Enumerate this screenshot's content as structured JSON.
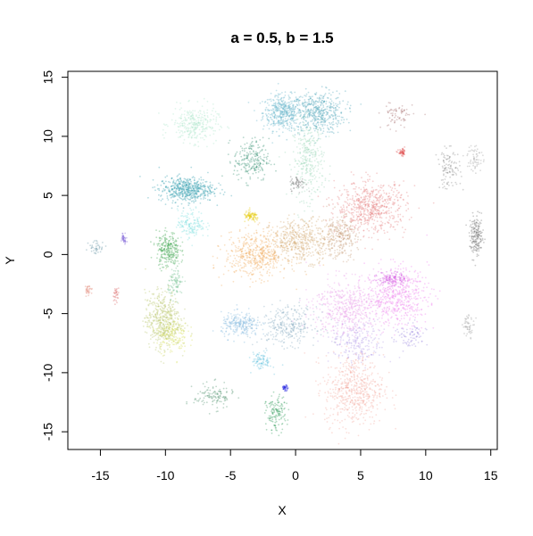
{
  "chart_data": {
    "type": "scatter",
    "title": "a = 0.5, b = 1.5",
    "xlabel": "X",
    "ylabel": "Y",
    "xlim": [
      -17.5,
      15.5
    ],
    "ylim": [
      -16.5,
      15.5
    ],
    "xticks": [
      -15,
      -10,
      -5,
      0,
      5,
      10,
      15
    ],
    "yticks": [
      -15,
      -10,
      -5,
      0,
      5,
      10,
      15
    ],
    "xtick_labels": [
      "-15",
      "-10",
      "-5",
      "0",
      "5",
      "10",
      "15"
    ],
    "ytick_labels": [
      "-15",
      "-10",
      "-5",
      "0",
      "5",
      "10",
      "15"
    ],
    "grid": false,
    "legend": "none",
    "clusters": [
      {
        "name": "c1",
        "color": "#5fb3c9",
        "cx": -1.0,
        "cy": 12.0,
        "sx": 1.0,
        "sy": 1.0,
        "n": 420
      },
      {
        "name": "c2",
        "color": "#4aa3b8",
        "cx": 1.7,
        "cy": 12.0,
        "sx": 1.4,
        "sy": 1.2,
        "n": 480
      },
      {
        "name": "c3",
        "color": "#9ad6b8",
        "cx": 1.0,
        "cy": 8.0,
        "sx": 0.8,
        "sy": 2.2,
        "n": 320
      },
      {
        "name": "c4",
        "color": "#a9e4c8",
        "cx": -7.8,
        "cy": 11.0,
        "sx": 1.2,
        "sy": 1.0,
        "n": 300
      },
      {
        "name": "c5",
        "color": "#2e8b6e",
        "cx": -3.4,
        "cy": 8.0,
        "sx": 0.9,
        "sy": 1.2,
        "n": 220
      },
      {
        "name": "c6",
        "color": "#777777",
        "cx": 0.2,
        "cy": 6.0,
        "sx": 0.4,
        "sy": 0.4,
        "n": 60
      },
      {
        "name": "c7",
        "color": "#2c9aab",
        "cx": -8.4,
        "cy": 5.5,
        "sx": 1.4,
        "sy": 0.7,
        "n": 520
      },
      {
        "name": "c8",
        "color": "#7fe0e0",
        "cx": -8.0,
        "cy": 2.6,
        "sx": 0.7,
        "sy": 0.8,
        "n": 160
      },
      {
        "name": "c9",
        "color": "#3aa34a",
        "cx": -9.8,
        "cy": 0.4,
        "sx": 0.6,
        "sy": 1.0,
        "n": 260
      },
      {
        "name": "c10",
        "color": "#6fbf8f",
        "cx": -9.2,
        "cy": -2.4,
        "sx": 0.4,
        "sy": 0.8,
        "n": 90
      },
      {
        "name": "c11",
        "color": "#e6c800",
        "cx": -3.4,
        "cy": 3.2,
        "sx": 0.4,
        "sy": 0.3,
        "n": 90
      },
      {
        "name": "c12",
        "color": "#f2a85a",
        "cx": -3.0,
        "cy": 0.0,
        "sx": 1.6,
        "sy": 1.3,
        "n": 500
      },
      {
        "name": "c13",
        "color": "#d2a56d",
        "cx": 0.5,
        "cy": 1.2,
        "sx": 1.6,
        "sy": 1.2,
        "n": 480
      },
      {
        "name": "c14",
        "color": "#c69a78",
        "cx": 3.4,
        "cy": 1.5,
        "sx": 0.9,
        "sy": 1.2,
        "n": 260
      },
      {
        "name": "c15",
        "color": "#e57e7e",
        "cx": 5.8,
        "cy": 4.0,
        "sx": 1.8,
        "sy": 1.4,
        "n": 620
      },
      {
        "name": "c16",
        "color": "#e04a4a",
        "cx": 8.2,
        "cy": 8.6,
        "sx": 0.2,
        "sy": 0.2,
        "n": 50
      },
      {
        "name": "c17",
        "color": "#a36b6b",
        "cx": 7.8,
        "cy": 11.8,
        "sx": 0.8,
        "sy": 0.8,
        "n": 70
      },
      {
        "name": "c18",
        "color": "#888888",
        "cx": 11.8,
        "cy": 7.2,
        "sx": 0.6,
        "sy": 1.1,
        "n": 110
      },
      {
        "name": "c19",
        "color": "#9a9a9a",
        "cx": 13.8,
        "cy": 8.2,
        "sx": 0.4,
        "sy": 0.8,
        "n": 60
      },
      {
        "name": "c20",
        "color": "#6e6e6e",
        "cx": 13.9,
        "cy": 1.5,
        "sx": 0.35,
        "sy": 1.1,
        "n": 180
      },
      {
        "name": "c21",
        "color": "#e89ae8",
        "cx": 4.0,
        "cy": -4.5,
        "sx": 1.8,
        "sy": 1.6,
        "n": 540
      },
      {
        "name": "c22",
        "color": "#ef7fef",
        "cx": 7.8,
        "cy": -3.5,
        "sx": 1.6,
        "sy": 1.6,
        "n": 520
      },
      {
        "name": "c23",
        "color": "#cf4fe0",
        "cx": 7.4,
        "cy": -2.0,
        "sx": 0.7,
        "sy": 0.4,
        "n": 120
      },
      {
        "name": "c24",
        "color": "#b29ae8",
        "cx": 4.8,
        "cy": -7.5,
        "sx": 1.4,
        "sy": 1.2,
        "n": 220
      },
      {
        "name": "c25",
        "color": "#9b86e0",
        "cx": 8.8,
        "cy": -7.0,
        "sx": 0.8,
        "sy": 0.8,
        "n": 80
      },
      {
        "name": "c26",
        "color": "#f4a79a",
        "cx": 4.5,
        "cy": -11.5,
        "sx": 1.5,
        "sy": 2.0,
        "n": 560
      },
      {
        "name": "c27",
        "color": "#b7c66a",
        "cx": -10.2,
        "cy": -5.5,
        "sx": 0.9,
        "sy": 1.6,
        "n": 480
      },
      {
        "name": "c28",
        "color": "#d8e05a",
        "cx": -9.5,
        "cy": -6.8,
        "sx": 0.8,
        "sy": 1.0,
        "n": 160
      },
      {
        "name": "c29",
        "color": "#7ab4dc",
        "cx": -4.2,
        "cy": -6.0,
        "sx": 1.0,
        "sy": 0.7,
        "n": 240
      },
      {
        "name": "c30",
        "color": "#84aabf",
        "cx": -0.6,
        "cy": -6.0,
        "sx": 1.5,
        "sy": 1.1,
        "n": 300
      },
      {
        "name": "c31",
        "color": "#5fbfdc",
        "cx": -2.6,
        "cy": -9.0,
        "sx": 0.5,
        "sy": 0.5,
        "n": 90
      },
      {
        "name": "c32",
        "color": "#4a8f6a",
        "cx": -6.3,
        "cy": -12.0,
        "sx": 1.0,
        "sy": 0.7,
        "n": 120
      },
      {
        "name": "c33",
        "color": "#2e9b5a",
        "cx": -1.5,
        "cy": -13.5,
        "sx": 0.5,
        "sy": 1.0,
        "n": 140
      },
      {
        "name": "c34",
        "color": "#2020e0",
        "cx": -0.8,
        "cy": -11.3,
        "sx": 0.15,
        "sy": 0.15,
        "n": 40
      },
      {
        "name": "c35",
        "color": "#7c5fd6",
        "cx": -13.2,
        "cy": 1.4,
        "sx": 0.15,
        "sy": 0.3,
        "n": 40
      },
      {
        "name": "c36",
        "color": "#5f8fa0",
        "cx": -15.3,
        "cy": 0.6,
        "sx": 0.4,
        "sy": 0.4,
        "n": 40
      },
      {
        "name": "c37",
        "color": "#e07a6a",
        "cx": -15.9,
        "cy": -3.0,
        "sx": 0.2,
        "sy": 0.3,
        "n": 30
      },
      {
        "name": "c38",
        "color": "#d96060",
        "cx": -13.8,
        "cy": -3.4,
        "sx": 0.15,
        "sy": 0.4,
        "n": 30
      },
      {
        "name": "c39",
        "color": "#999999",
        "cx": 13.3,
        "cy": -6.0,
        "sx": 0.3,
        "sy": 0.6,
        "n": 50
      }
    ]
  }
}
